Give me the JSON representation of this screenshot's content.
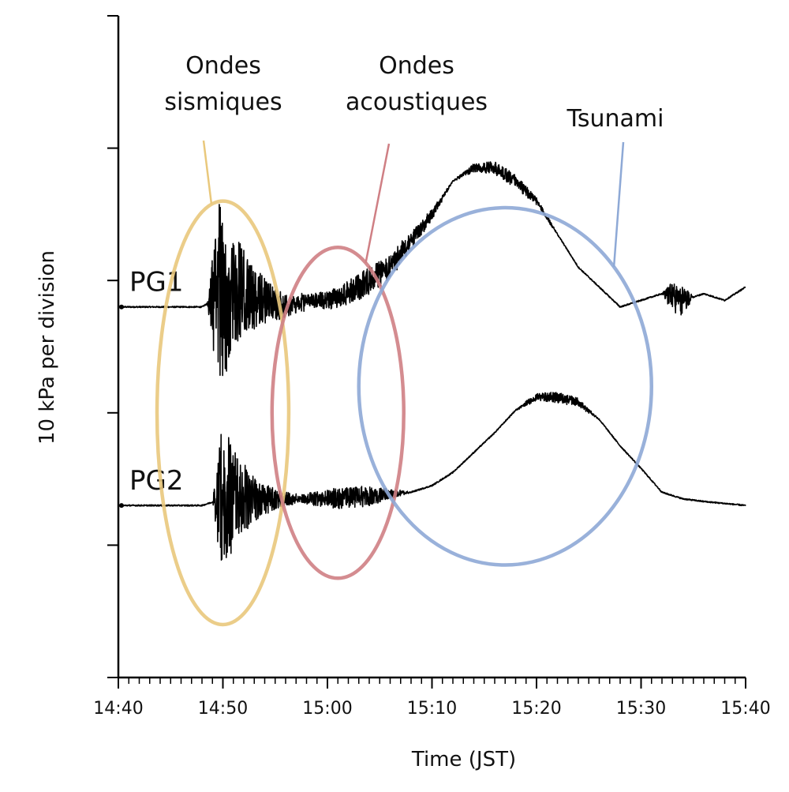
{
  "chart_data": {
    "type": "line",
    "title": "",
    "xlabel": "Time (JST)",
    "ylabel": "10 kPa per division",
    "x_ticks": [
      "14:40",
      "14:50",
      "15:00",
      "15:10",
      "15:20",
      "15:30",
      "15:40"
    ],
    "xlim": [
      "14:40",
      "15:40"
    ],
    "minor_tick_interval_minutes": 1,
    "y_divisions": 5,
    "y_unit_per_division_kpa": 10,
    "grid": false,
    "series": [
      {
        "name": "PG1",
        "color": "#000000",
        "baseline_division": 2.8,
        "points": [
          [
            "14:40",
            0.0
          ],
          [
            "14:48",
            0.0
          ],
          [
            "14:49",
            0.05
          ],
          [
            "14:50",
            0.1
          ],
          [
            "14:52",
            0.1
          ],
          [
            "14:54",
            0.05
          ],
          [
            "14:56",
            0.0
          ],
          [
            "14:58",
            0.05
          ],
          [
            "15:00",
            0.05
          ],
          [
            "15:02",
            0.1
          ],
          [
            "15:04",
            0.2
          ],
          [
            "15:06",
            0.3
          ],
          [
            "15:08",
            0.5
          ],
          [
            "15:10",
            0.7
          ],
          [
            "15:12",
            0.95
          ],
          [
            "15:14",
            1.05
          ],
          [
            "15:16",
            1.05
          ],
          [
            "15:18",
            0.95
          ],
          [
            "15:20",
            0.8
          ],
          [
            "15:22",
            0.55
          ],
          [
            "15:24",
            0.3
          ],
          [
            "15:26",
            0.15
          ],
          [
            "15:28",
            0.0
          ],
          [
            "15:30",
            0.05
          ],
          [
            "15:32",
            0.1
          ],
          [
            "15:34",
            0.05
          ],
          [
            "15:36",
            0.1
          ],
          [
            "15:38",
            0.05
          ],
          [
            "15:40",
            0.15
          ]
        ],
        "noise_bursts": [
          {
            "start": "14:48.5",
            "end": "14:58",
            "peak_amplitude": 0.75,
            "type": "seismic"
          },
          {
            "start": "14:56",
            "end": "15:12",
            "peak_amplitude": 0.1,
            "type": "acoustic"
          },
          {
            "start": "15:12",
            "end": "15:22",
            "peak_amplitude": 0.05,
            "type": "tsunami"
          },
          {
            "start": "15:32",
            "end": "15:35",
            "peak_amplitude": 0.12,
            "type": "burst"
          }
        ]
      },
      {
        "name": "PG2",
        "color": "#000000",
        "baseline_division": 1.3,
        "points": [
          [
            "14:40",
            0.0
          ],
          [
            "14:48",
            0.0
          ],
          [
            "14:50",
            0.05
          ],
          [
            "14:54",
            0.05
          ],
          [
            "14:56",
            0.05
          ],
          [
            "15:00",
            0.05
          ],
          [
            "15:04",
            0.07
          ],
          [
            "15:08",
            0.1
          ],
          [
            "15:10",
            0.15
          ],
          [
            "15:12",
            0.25
          ],
          [
            "15:14",
            0.4
          ],
          [
            "15:16",
            0.55
          ],
          [
            "15:18",
            0.72
          ],
          [
            "15:20",
            0.82
          ],
          [
            "15:22",
            0.82
          ],
          [
            "15:24",
            0.78
          ],
          [
            "15:26",
            0.65
          ],
          [
            "15:28",
            0.45
          ],
          [
            "15:30",
            0.28
          ],
          [
            "15:32",
            0.1
          ],
          [
            "15:34",
            0.05
          ],
          [
            "15:36",
            0.03
          ],
          [
            "15:40",
            0.0
          ]
        ],
        "noise_bursts": [
          {
            "start": "14:49",
            "end": "14:57",
            "peak_amplitude": 0.6,
            "type": "seismic"
          },
          {
            "start": "14:56",
            "end": "15:08",
            "peak_amplitude": 0.08,
            "type": "acoustic"
          },
          {
            "start": "15:18",
            "end": "15:26",
            "peak_amplitude": 0.04,
            "type": "tsunami"
          }
        ]
      }
    ],
    "annotations": [
      {
        "lines": [
          "Ondes",
          "sismiques"
        ],
        "color": "#e9c87c",
        "time_center": "14:50",
        "division_center": 2.0,
        "time_radius_minutes": 6.3,
        "division_radius": 1.6
      },
      {
        "lines": [
          "Ondes",
          "acoustiques"
        ],
        "color": "#cf7f84",
        "time_center": "15:01",
        "division_center": 2.0,
        "time_radius_minutes": 6.3,
        "division_radius": 1.25
      },
      {
        "lines": [
          "Tsunami"
        ],
        "color": "#8ea9d6",
        "time_center": "15:17",
        "division_center": 2.2,
        "time_radius_minutes": 14,
        "division_radius": 1.35
      }
    ]
  }
}
